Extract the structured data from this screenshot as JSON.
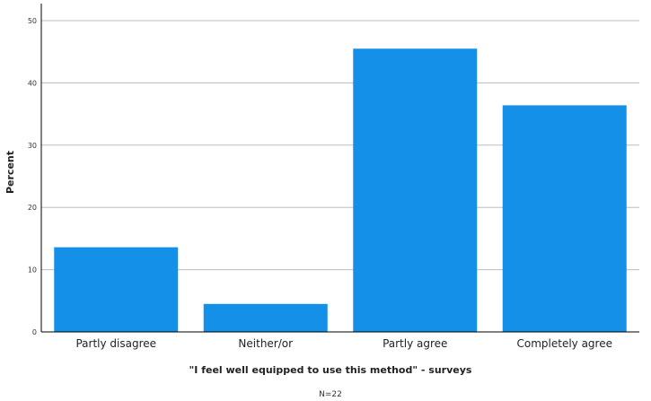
{
  "chart_data": {
    "type": "bar",
    "categories": [
      "Partly disagree",
      "Neither/or",
      "Partly agree",
      "Completely agree"
    ],
    "values": [
      13.6,
      4.5,
      45.5,
      36.4
    ],
    "xlabel": "\"I feel well equipped to use this method\" - surveys",
    "ylabel": "Percent",
    "ylim": [
      0,
      50
    ],
    "yticks": [
      0,
      10,
      20,
      30,
      40,
      50
    ],
    "note": "N=22",
    "grid": "horizontal",
    "bar_color": "#1590e8",
    "grid_color": "#bdbdbd"
  }
}
